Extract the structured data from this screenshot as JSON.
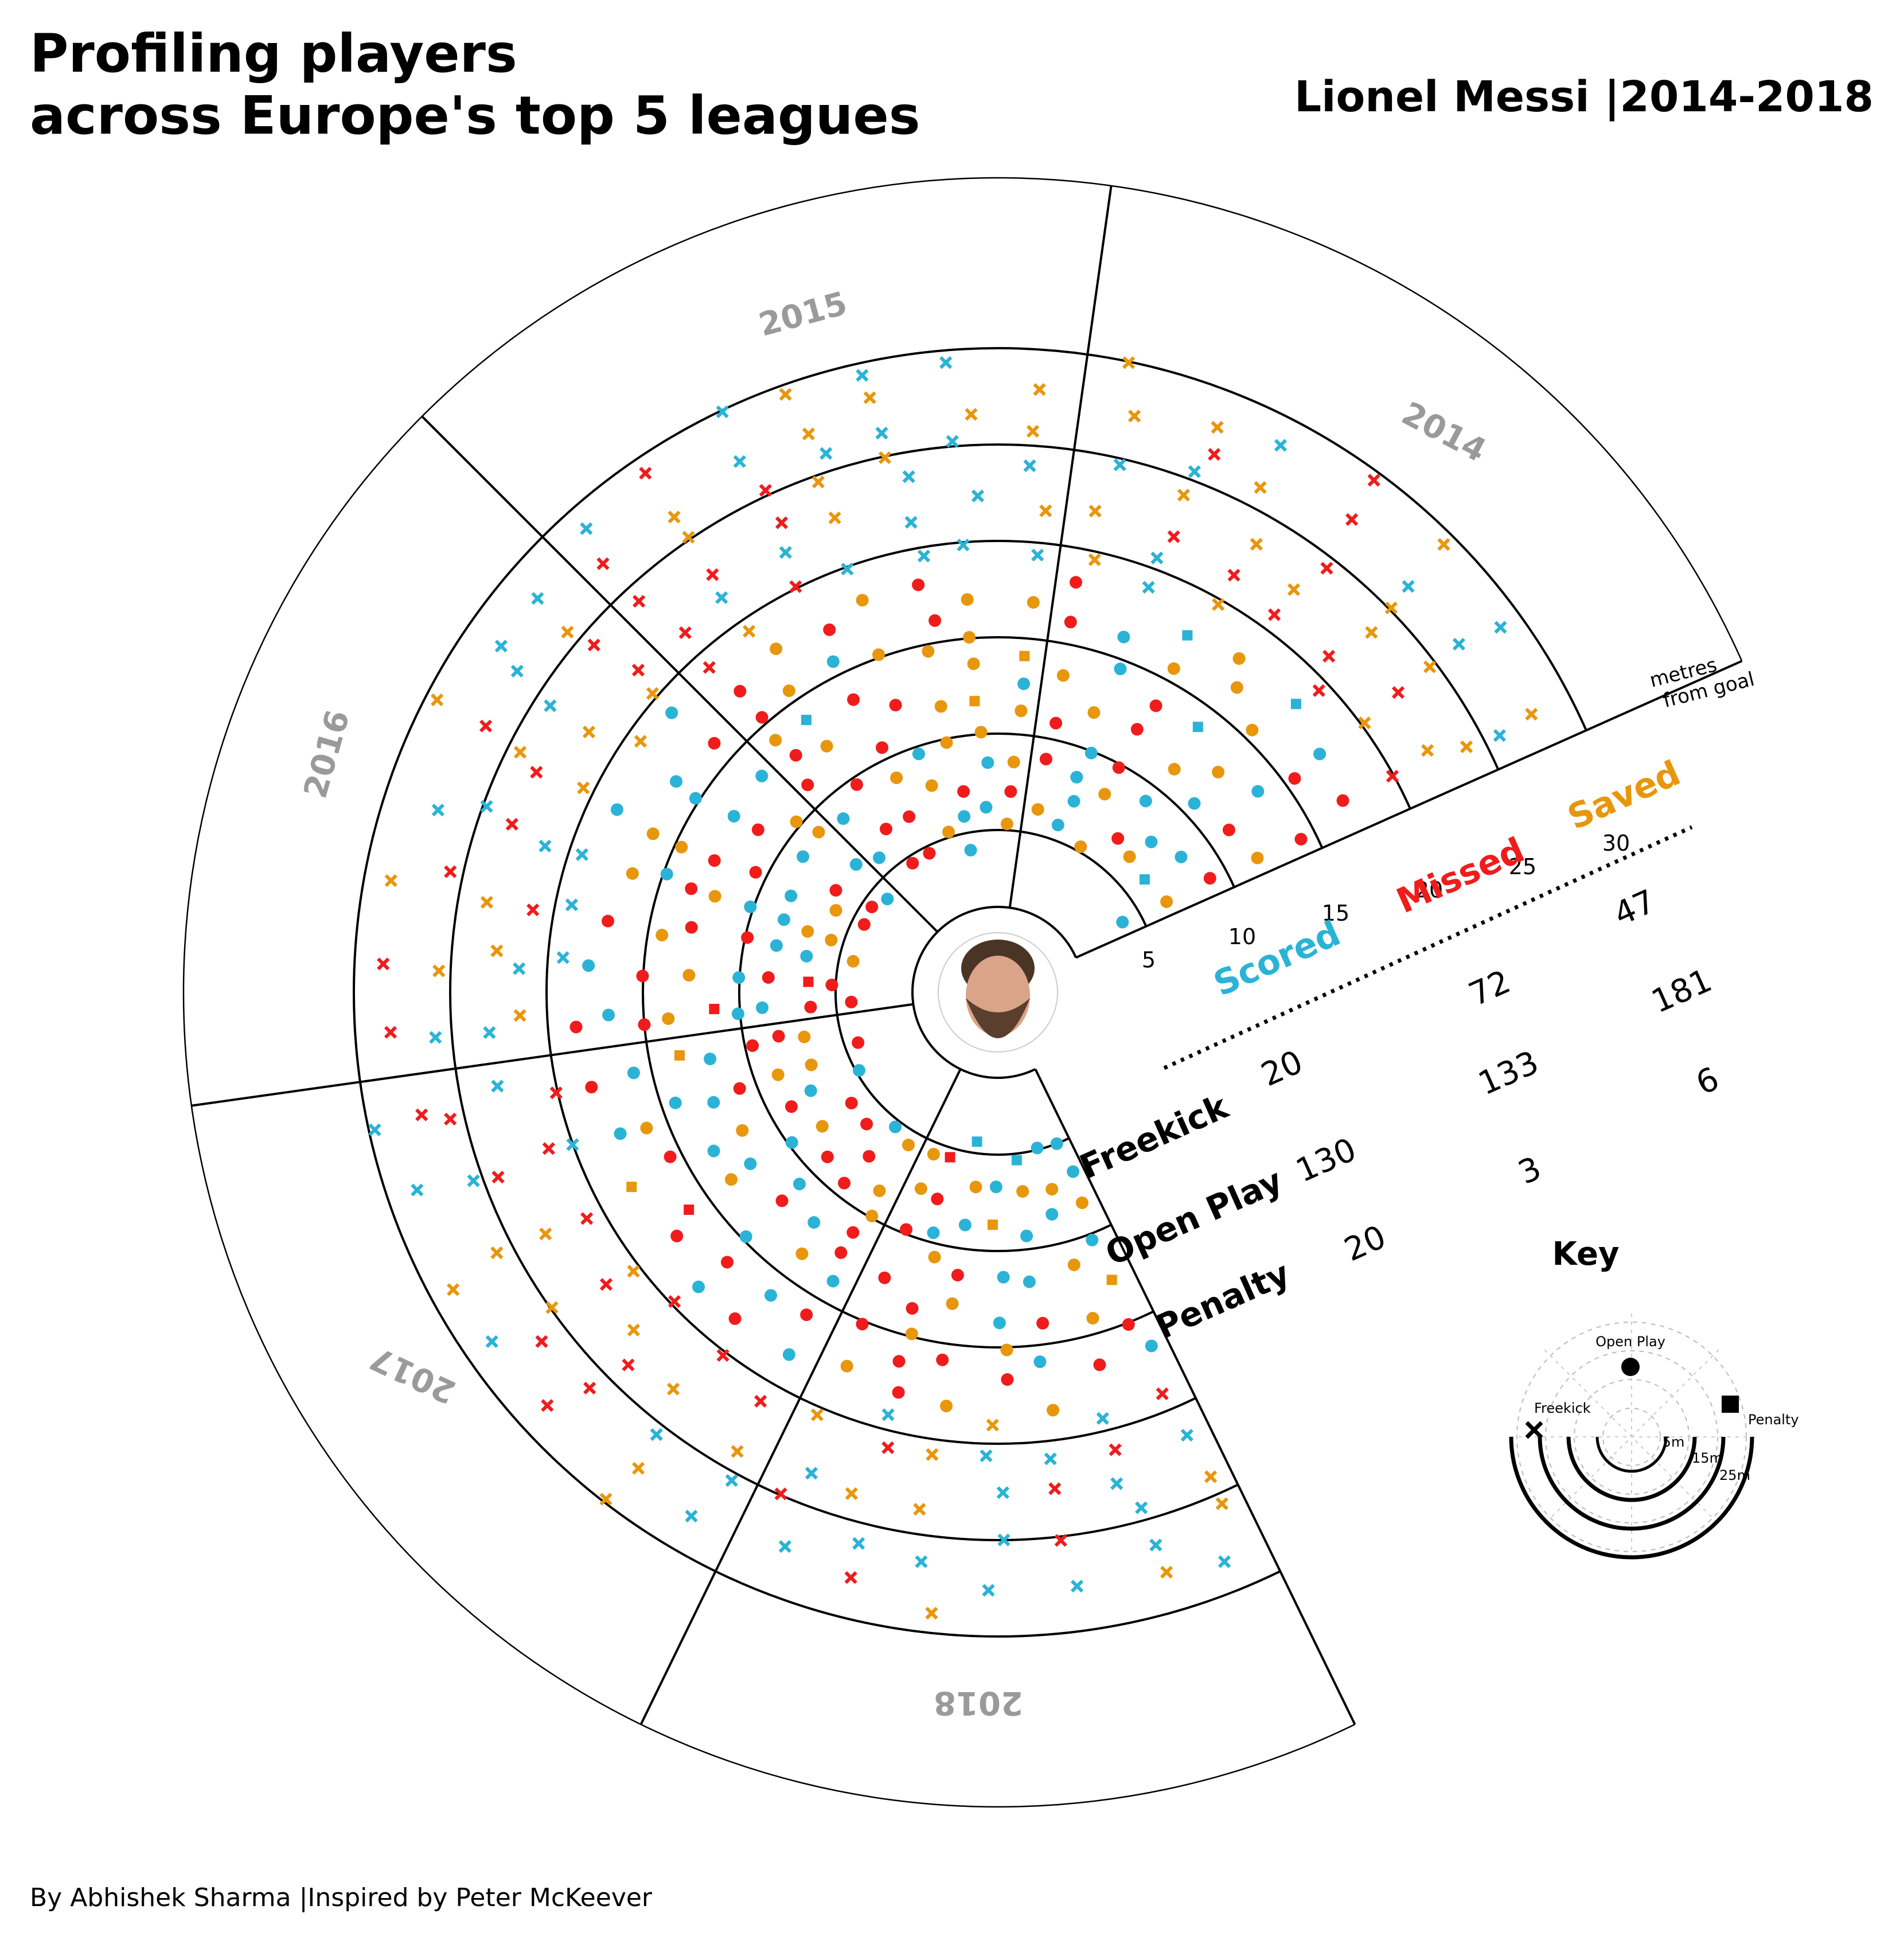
{
  "page": {
    "title": "Profiling players\nacross Europe's top 5 leagues",
    "subtitle": "Lionel Messi |2014-2018",
    "credit": "By Abhishek Sharma |Inspired by Peter McKeever"
  },
  "colors": {
    "scored": "#2ab3d6",
    "missed": "#f01c1c",
    "saved": "#e8960c",
    "year_label": "#9a9a9a"
  },
  "chart_data": {
    "type": "scatter",
    "subtype": "radial-polar",
    "radial_unit": "metres from goal",
    "radial_ticks": [
      5,
      10,
      15,
      20,
      25,
      30
    ],
    "seasons": [
      "2014",
      "2015",
      "2016",
      "2017",
      "2018"
    ],
    "outcomes": [
      "Scored",
      "Missed",
      "Saved"
    ],
    "shot_types": [
      "Freekick",
      "Open Play",
      "Penalty"
    ],
    "marker_legend": {
      "Open Play": "circle",
      "Penalty": "square",
      "Freekick": "cross"
    },
    "table": {
      "column_headers": [
        "Scored",
        "Missed",
        "Saved"
      ],
      "row_headers": [
        "Freekick",
        "Open Play",
        "Penalty"
      ],
      "cells": [
        {
          "row": "Freekick",
          "col": "Scored",
          "value": "20"
        },
        {
          "row": "Freekick",
          "col": "Missed",
          "value": "72"
        },
        {
          "row": "Freekick",
          "col": "Saved",
          "value": "47"
        },
        {
          "row": "Open Play",
          "col": "Scored",
          "value": "130"
        },
        {
          "row": "Open Play",
          "col": "Missed",
          "value": "133"
        },
        {
          "row": "Open Play",
          "col": "Saved",
          "value": "181"
        },
        {
          "row": "Penalty",
          "col": "Scored",
          "value": "20"
        },
        {
          "row": "Penalty",
          "col": "Missed",
          "value": "3"
        },
        {
          "row": "Penalty",
          "col": "Saved",
          "value": "6"
        }
      ]
    },
    "axis_unit_label": "metres\nfrom goal",
    "key": {
      "title": "Key",
      "labels": [
        "Open Play",
        "Penalty",
        "Freekick"
      ],
      "distance_labels": [
        "5m",
        "15m",
        "25m"
      ]
    },
    "shots_sample": [
      {
        "season": "2014",
        "r": 6.5,
        "lane": 0.3,
        "type": "Open Play",
        "outcome": "Missed"
      },
      {
        "season": "2014",
        "r": 12.0,
        "lane": 0.1,
        "type": "Open Play",
        "outcome": "Saved"
      },
      {
        "season": "2014",
        "r": 16.5,
        "lane": 0.55,
        "type": "Open Play",
        "outcome": "Scored"
      },
      {
        "season": "2014",
        "r": 27.0,
        "lane": 0.7,
        "type": "Freekick",
        "outcome": "Missed"
      },
      {
        "season": "2015",
        "r": 9.0,
        "lane": 0.2,
        "type": "Open Play",
        "outcome": "Scored"
      },
      {
        "season": "2015",
        "r": 19.0,
        "lane": 0.5,
        "type": "Freekick",
        "outcome": "Missed"
      },
      {
        "season": "2015",
        "r": 11.0,
        "lane": 0.4,
        "type": "Penalty",
        "outcome": "Scored"
      },
      {
        "season": "2016",
        "r": 13.5,
        "lane": 0.45,
        "type": "Open Play",
        "outcome": "Missed"
      },
      {
        "season": "2016",
        "r": 25.0,
        "lane": 0.8,
        "type": "Freekick",
        "outcome": "Saved"
      },
      {
        "season": "2017",
        "r": 10.0,
        "lane": 0.2,
        "type": "Open Play",
        "outcome": "Scored"
      },
      {
        "season": "2017",
        "r": 22.0,
        "lane": 0.6,
        "type": "Open Play",
        "outcome": "Missed"
      },
      {
        "season": "2018",
        "r": 11.0,
        "lane": 0.5,
        "type": "Penalty",
        "outcome": "Scored"
      },
      {
        "season": "2018",
        "r": 28.0,
        "lane": 0.45,
        "type": "Freekick",
        "outcome": "Missed"
      }
    ]
  }
}
